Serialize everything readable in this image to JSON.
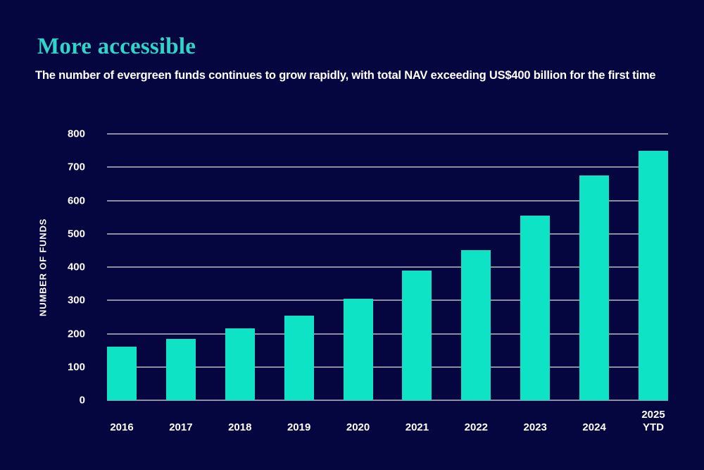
{
  "page": {
    "background_color": "#050540",
    "accent_color": "#0fe3c6"
  },
  "header": {
    "title": "More accessible",
    "title_color": "#2dd6c8",
    "subtitle": "The number of evergreen funds continues to grow rapidly, with total NAV exceeding US$400 billion for the first time"
  },
  "chart_data": {
    "type": "bar",
    "title": "More accessible",
    "subtitle": "The number of evergreen funds continues to grow rapidly, with total NAV exceeding US$400 billion for the first time",
    "categories": [
      "2016",
      "2017",
      "2018",
      "2019",
      "2020",
      "2021",
      "2022",
      "2023",
      "2024",
      "2025\nYTD"
    ],
    "values": [
      160,
      185,
      215,
      255,
      305,
      390,
      450,
      555,
      675,
      750
    ],
    "xlabel": "",
    "ylabel": "NUMBER OF FUNDS",
    "ylim": [
      0,
      800
    ],
    "yticks": [
      0,
      100,
      200,
      300,
      400,
      500,
      600,
      700,
      800
    ],
    "grid": true,
    "legend": false,
    "bar_color": "#0fe3c6",
    "gridline_color": "#8d8da1",
    "text_color": "#ffffff"
  }
}
